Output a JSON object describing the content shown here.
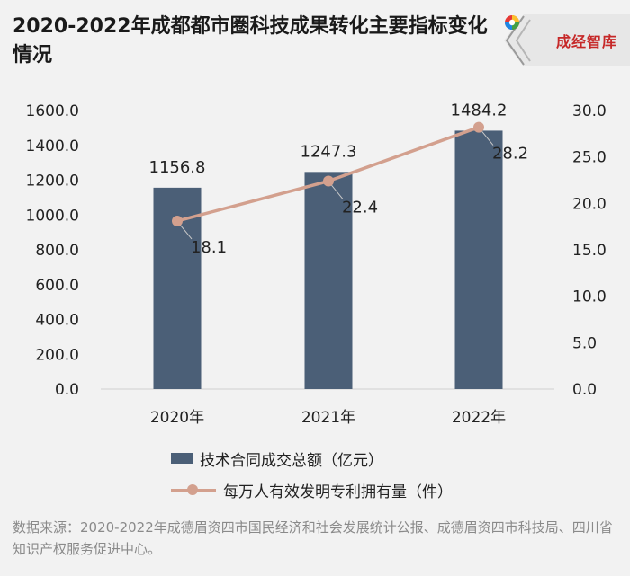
{
  "title": "2020-2022年成都都市圈科技成果转化主要指标变化情况",
  "badge": {
    "text": "成经智库"
  },
  "source": "数据来源：2020-2022年成德眉资四市国民经济和社会发展统计公报、成德眉资四市科技局、四川省知识产权服务促进中心。",
  "colors": {
    "bar": "#4b5f77",
    "line": "#d3a08e",
    "background": "#f2f2f2"
  },
  "chart_data": {
    "type": "bar",
    "categories": [
      "2020年",
      "2021年",
      "2022年"
    ],
    "series": [
      {
        "name": "技术合同成交总额（亿元）",
        "type": "bar",
        "axis": "left",
        "values": [
          1156.8,
          1247.3,
          1484.2
        ],
        "labels": [
          "1156.8",
          "1247.3",
          "1484.2"
        ]
      },
      {
        "name": "每万人有效发明专利拥有量（件）",
        "type": "line",
        "axis": "right",
        "values": [
          18.1,
          22.4,
          28.2
        ],
        "labels": [
          "18.1",
          "22.4",
          "28.2"
        ]
      }
    ],
    "y_left": {
      "min": 0,
      "max": 1600,
      "ticks": [
        "0.0",
        "200.0",
        "400.0",
        "600.0",
        "800.0",
        "1000.0",
        "1200.0",
        "1400.0",
        "1600.0"
      ]
    },
    "y_right": {
      "min": 0,
      "max": 30,
      "ticks": [
        "0.0",
        "5.0",
        "10.0",
        "15.0",
        "20.0",
        "25.0",
        "30.0"
      ]
    },
    "legend_position": "bottom",
    "grid": false
  }
}
